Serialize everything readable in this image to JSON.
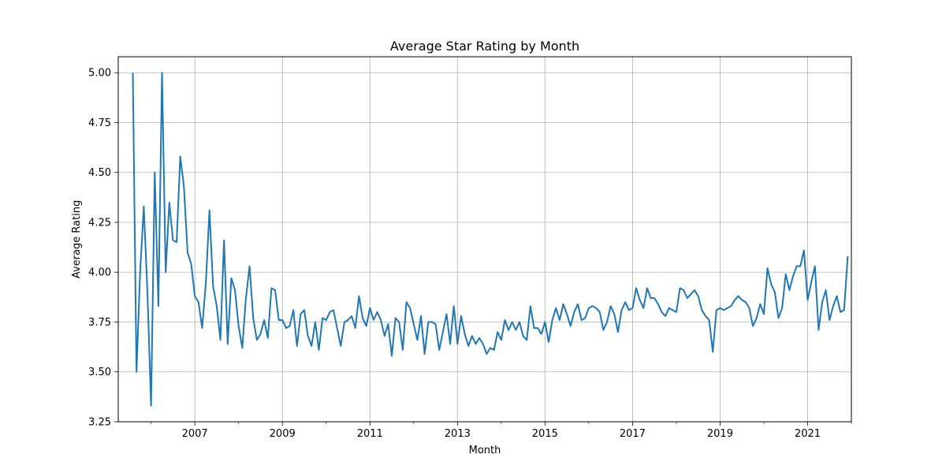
{
  "chart_data": {
    "type": "line",
    "title": "Average Star Rating by Month",
    "xlabel": "Month",
    "ylabel": "Average Rating",
    "x_start": "2005-08",
    "x_end": "2022-01",
    "xlim": [
      "2005-04",
      "2022-01"
    ],
    "ylim": [
      3.25,
      5.08
    ],
    "x_ticks": [
      {
        "date": "2007-01",
        "label": "2007"
      },
      {
        "date": "2009-01",
        "label": "2009"
      },
      {
        "date": "2011-01",
        "label": "2011"
      },
      {
        "date": "2013-01",
        "label": "2013"
      },
      {
        "date": "2015-01",
        "label": "2015"
      },
      {
        "date": "2017-01",
        "label": "2017"
      },
      {
        "date": "2019-01",
        "label": "2019"
      },
      {
        "date": "2021-01",
        "label": "2021"
      }
    ],
    "y_ticks": [
      {
        "value": 3.25,
        "label": "3.25"
      },
      {
        "value": 3.5,
        "label": "3.50"
      },
      {
        "value": 3.75,
        "label": "3.75"
      },
      {
        "value": 4.0,
        "label": "4.00"
      },
      {
        "value": 4.25,
        "label": "4.25"
      },
      {
        "value": 4.5,
        "label": "4.50"
      },
      {
        "value": 4.75,
        "label": "4.75"
      },
      {
        "value": 5.0,
        "label": "5.00"
      }
    ],
    "grid": true,
    "line_color": "#1f77b4",
    "series": [
      {
        "values": [
          5.0,
          3.5,
          4.0,
          4.33,
          3.9,
          3.33,
          4.5,
          3.83,
          5.0,
          4.0,
          4.35,
          4.16,
          4.15,
          4.58,
          4.43,
          4.1,
          4.04,
          3.88,
          3.85,
          3.72,
          3.94,
          4.31,
          3.93,
          3.83,
          3.66,
          4.16,
          3.64,
          3.97,
          3.91,
          3.73,
          3.62,
          3.87,
          4.03,
          3.77,
          3.66,
          3.69,
          3.76,
          3.67,
          3.92,
          3.91,
          3.76,
          3.76,
          3.72,
          3.73,
          3.81,
          3.63,
          3.79,
          3.81,
          3.68,
          3.63,
          3.75,
          3.61,
          3.77,
          3.76,
          3.8,
          3.81,
          3.72,
          3.63,
          3.75,
          3.76,
          3.78,
          3.72,
          3.88,
          3.77,
          3.73,
          3.82,
          3.76,
          3.8,
          3.76,
          3.68,
          3.74,
          3.58,
          3.77,
          3.75,
          3.61,
          3.85,
          3.82,
          3.74,
          3.66,
          3.78,
          3.59,
          3.75,
          3.75,
          3.74,
          3.61,
          3.7,
          3.79,
          3.64,
          3.83,
          3.64,
          3.78,
          3.69,
          3.63,
          3.68,
          3.64,
          3.67,
          3.64,
          3.59,
          3.62,
          3.61,
          3.7,
          3.66,
          3.76,
          3.71,
          3.75,
          3.71,
          3.75,
          3.68,
          3.66,
          3.83,
          3.72,
          3.72,
          3.69,
          3.75,
          3.65,
          3.76,
          3.82,
          3.76,
          3.84,
          3.79,
          3.73,
          3.8,
          3.84,
          3.76,
          3.77,
          3.82,
          3.83,
          3.82,
          3.8,
          3.71,
          3.75,
          3.83,
          3.79,
          3.7,
          3.81,
          3.85,
          3.81,
          3.82,
          3.92,
          3.86,
          3.82,
          3.92,
          3.87,
          3.87,
          3.84,
          3.8,
          3.78,
          3.82,
          3.81,
          3.8,
          3.92,
          3.91,
          3.87,
          3.89,
          3.91,
          3.88,
          3.81,
          3.78,
          3.76,
          3.6,
          3.81,
          3.82,
          3.81,
          3.82,
          3.83,
          3.86,
          3.88,
          3.86,
          3.85,
          3.82,
          3.73,
          3.77,
          3.84,
          3.79,
          4.02,
          3.94,
          3.9,
          3.77,
          3.82,
          3.99,
          3.91,
          3.98,
          4.03,
          4.03,
          4.11,
          3.86,
          3.95,
          4.03,
          3.71,
          3.85,
          3.91,
          3.76,
          3.83,
          3.88,
          3.8,
          3.81,
          4.08
        ]
      }
    ]
  }
}
